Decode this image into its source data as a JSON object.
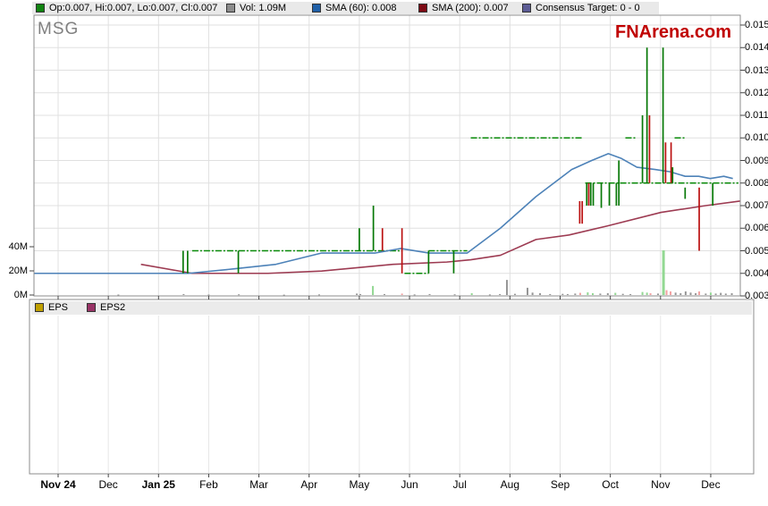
{
  "title": "MSG",
  "watermark": "FNArena.com",
  "legend_top": {
    "ohlc": {
      "label": "Op:0.007, Hi:0.007, Lo:0.007, Cl:0.007",
      "color": "#108410"
    },
    "vol": {
      "label": "Vol: 1.09M",
      "color": "#8c8c8c"
    },
    "sma60": {
      "label": "SMA (60): 0.008",
      "color": "#2060a8"
    },
    "sma200": {
      "label": "SMA (200): 0.007",
      "color": "#7d0a14"
    },
    "consensus": {
      "label": "Consensus Target: 0 - 0",
      "color": "#5c5c95"
    }
  },
  "eps_legend": {
    "eps": {
      "label": "EPS",
      "color": "#c0a000"
    },
    "eps2": {
      "label": "EPS2",
      "color": "#993366"
    }
  },
  "chart_data": {
    "type": "candlestick+line",
    "title": "MSG daily price with SMA(60), SMA(200), volume and consensus target",
    "x_ticks": [
      {
        "label": "Nov 24",
        "bold": true
      },
      {
        "label": "Dec",
        "bold": false
      },
      {
        "label": "Jan 25",
        "bold": true
      },
      {
        "label": "Feb",
        "bold": false
      },
      {
        "label": "Mar",
        "bold": false
      },
      {
        "label": "Apr",
        "bold": false
      },
      {
        "label": "May",
        "bold": false
      },
      {
        "label": "Jun",
        "bold": false
      },
      {
        "label": "Jul",
        "bold": false
      },
      {
        "label": "Aug",
        "bold": false
      },
      {
        "label": "Sep",
        "bold": false
      },
      {
        "label": "Oct",
        "bold": false
      },
      {
        "label": "Nov",
        "bold": false
      },
      {
        "label": "Dec",
        "bold": false
      }
    ],
    "price_axis": {
      "min": 0.003,
      "max": 0.015,
      "step": 0.001,
      "labels": [
        "0.015",
        "0.014",
        "0.013",
        "0.012",
        "0.011",
        "0.010",
        "0.009",
        "0.008",
        "0.007",
        "0.006",
        "0.005",
        "0.004",
        "0.003"
      ]
    },
    "volume_axis": {
      "max_m": 40,
      "labels": [
        {
          "label": "40M",
          "value": 40
        },
        {
          "label": "20M",
          "value": 20
        },
        {
          "label": "0M",
          "value": 0
        }
      ]
    },
    "flat_price_line": {
      "price": 0.004,
      "from": -0.48,
      "to": 2.49,
      "color": "#067806"
    },
    "candles": [
      {
        "x": 2.49,
        "lo": 0.004,
        "hi": 0.005,
        "dir": "up"
      },
      {
        "x": 2.58,
        "lo": 0.004,
        "hi": 0.005,
        "dir": "up"
      },
      {
        "x": 3.59,
        "lo": 0.004,
        "hi": 0.005,
        "dir": "up"
      },
      {
        "x": 6.0,
        "lo": 0.005,
        "hi": 0.006,
        "dir": "up"
      },
      {
        "x": 6.28,
        "lo": 0.005,
        "hi": 0.007,
        "dir": "up"
      },
      {
        "x": 6.46,
        "lo": 0.005,
        "hi": 0.006,
        "dir": "down"
      },
      {
        "x": 6.85,
        "lo": 0.004,
        "hi": 0.006,
        "dir": "down"
      },
      {
        "x": 7.38,
        "lo": 0.004,
        "hi": 0.005,
        "dir": "up"
      },
      {
        "x": 7.88,
        "lo": 0.004,
        "hi": 0.005,
        "dir": "up"
      },
      {
        "x": 10.39,
        "lo": 0.0062,
        "hi": 0.0072,
        "dir": "down"
      },
      {
        "x": 10.44,
        "lo": 0.0062,
        "hi": 0.0072,
        "dir": "down"
      },
      {
        "x": 10.53,
        "lo": 0.007,
        "hi": 0.008,
        "dir": "up"
      },
      {
        "x": 10.57,
        "lo": 0.007,
        "hi": 0.008,
        "dir": "down"
      },
      {
        "x": 10.61,
        "lo": 0.007,
        "hi": 0.008,
        "dir": "up"
      },
      {
        "x": 10.66,
        "lo": 0.007,
        "hi": 0.008,
        "dir": "up"
      },
      {
        "x": 10.82,
        "lo": 0.0069,
        "hi": 0.008,
        "dir": "up"
      },
      {
        "x": 10.98,
        "lo": 0.007,
        "hi": 0.008,
        "dir": "up"
      },
      {
        "x": 11.12,
        "lo": 0.007,
        "hi": 0.008,
        "dir": "up"
      },
      {
        "x": 11.17,
        "lo": 0.007,
        "hi": 0.009,
        "dir": "up"
      },
      {
        "x": 11.64,
        "lo": 0.008,
        "hi": 0.011,
        "dir": "up"
      },
      {
        "x": 11.73,
        "lo": 0.008,
        "hi": 0.014,
        "dir": "up"
      },
      {
        "x": 11.78,
        "lo": 0.008,
        "hi": 0.011,
        "dir": "down"
      },
      {
        "x": 12.05,
        "lo": 0.008,
        "hi": 0.014,
        "dir": "up"
      },
      {
        "x": 12.1,
        "lo": 0.008,
        "hi": 0.0098,
        "dir": "down"
      },
      {
        "x": 12.21,
        "lo": 0.008,
        "hi": 0.0098,
        "dir": "down"
      },
      {
        "x": 12.24,
        "lo": 0.008,
        "hi": 0.0087,
        "dir": "up"
      },
      {
        "x": 12.49,
        "lo": 0.0073,
        "hi": 0.0078,
        "dir": "up"
      },
      {
        "x": 12.77,
        "lo": 0.005,
        "hi": 0.0078,
        "dir": "down"
      },
      {
        "x": 13.04,
        "lo": 0.007,
        "hi": 0.008,
        "dir": "up"
      }
    ],
    "sma60": {
      "name": "SMA (60)",
      "color": "#4d82b8",
      "points": [
        [
          -0.48,
          0.004
        ],
        [
          2.6,
          0.004
        ],
        [
          3.51,
          0.0042
        ],
        [
          4.34,
          0.0044
        ],
        [
          5.25,
          0.0049
        ],
        [
          6.32,
          0.0049
        ],
        [
          6.82,
          0.0051
        ],
        [
          7.39,
          0.0049
        ],
        [
          8.15,
          0.0049
        ],
        [
          8.81,
          0.006
        ],
        [
          9.52,
          0.0074
        ],
        [
          10.23,
          0.0086
        ],
        [
          10.63,
          0.009
        ],
        [
          10.96,
          0.0093
        ],
        [
          11.21,
          0.0091
        ],
        [
          11.53,
          0.0087
        ],
        [
          11.89,
          0.0086
        ],
        [
          12.19,
          0.0085
        ],
        [
          12.49,
          0.0083
        ],
        [
          12.76,
          0.0083
        ],
        [
          12.99,
          0.0082
        ],
        [
          13.26,
          0.0083
        ],
        [
          13.44,
          0.0082
        ]
      ]
    },
    "sma200": {
      "name": "SMA (200)",
      "color": "#9d3b52",
      "points": [
        [
          1.65,
          0.0044
        ],
        [
          2.67,
          0.004
        ],
        [
          4.18,
          0.004
        ],
        [
          5.25,
          0.0041
        ],
        [
          6.67,
          0.0044
        ],
        [
          7.74,
          0.0045
        ],
        [
          8.22,
          0.0046
        ],
        [
          8.81,
          0.0048
        ],
        [
          9.52,
          0.0055
        ],
        [
          10.18,
          0.0057
        ],
        [
          10.94,
          0.0061
        ],
        [
          12.01,
          0.0067
        ],
        [
          12.9,
          0.007
        ],
        [
          13.58,
          0.0072
        ]
      ]
    },
    "consensus_segments": {
      "color": "#088a08",
      "segments": [
        {
          "from": -0.48,
          "to": 2.58,
          "price": 0.004
        },
        {
          "from": 2.67,
          "to": 6.85,
          "price": 0.005
        },
        {
          "from": 6.9,
          "to": 7.38,
          "price": 0.004
        },
        {
          "from": 7.38,
          "to": 8.15,
          "price": 0.005
        },
        {
          "from": 8.22,
          "to": 10.44,
          "price": 0.01
        },
        {
          "from": 11.3,
          "to": 11.51,
          "price": 0.01
        },
        {
          "from": 12.28,
          "to": 12.51,
          "price": 0.01
        },
        {
          "from": 10.5,
          "to": 13.55,
          "price": 0.008
        }
      ]
    },
    "volume_bars": [
      [
        1.2,
        0.4,
        "g"
      ],
      [
        2.5,
        0.8,
        "g"
      ],
      [
        3.0,
        0.4,
        "g"
      ],
      [
        3.6,
        0.6,
        "g"
      ],
      [
        4.5,
        0.3,
        "g"
      ],
      [
        5.2,
        0.5,
        "g"
      ],
      [
        5.95,
        1.2,
        "g"
      ],
      [
        6.02,
        0.8,
        "g"
      ],
      [
        6.27,
        7.5,
        "u"
      ],
      [
        6.5,
        0.8,
        "g"
      ],
      [
        6.85,
        1.2,
        "d"
      ],
      [
        7.1,
        0.5,
        "g"
      ],
      [
        7.4,
        0.8,
        "g"
      ],
      [
        7.9,
        0.6,
        "g"
      ],
      [
        8.24,
        1.5,
        "u"
      ],
      [
        8.6,
        0.5,
        "g"
      ],
      [
        8.8,
        0.8,
        "g"
      ],
      [
        8.94,
        12.5,
        "g"
      ],
      [
        9.1,
        1.0,
        "g"
      ],
      [
        9.35,
        6.0,
        "g"
      ],
      [
        9.45,
        2.0,
        "g"
      ],
      [
        9.6,
        1.5,
        "g"
      ],
      [
        9.8,
        0.8,
        "g"
      ],
      [
        10.05,
        1.0,
        "g"
      ],
      [
        10.15,
        0.8,
        "g"
      ],
      [
        10.3,
        1.2,
        "g"
      ],
      [
        10.4,
        1.8,
        "d"
      ],
      [
        10.55,
        2.2,
        "u"
      ],
      [
        10.65,
        1.5,
        "u"
      ],
      [
        10.8,
        1.2,
        "g"
      ],
      [
        10.95,
        1.5,
        "g"
      ],
      [
        11.1,
        1.8,
        "u"
      ],
      [
        11.25,
        1.0,
        "g"
      ],
      [
        11.4,
        0.8,
        "g"
      ],
      [
        11.64,
        2.5,
        "u"
      ],
      [
        11.73,
        2.0,
        "u"
      ],
      [
        11.8,
        1.5,
        "d"
      ],
      [
        11.95,
        1.2,
        "g"
      ],
      [
        12.05,
        37,
        "u"
      ],
      [
        12.12,
        4.0,
        "d"
      ],
      [
        12.2,
        3.0,
        "d"
      ],
      [
        12.3,
        2.0,
        "g"
      ],
      [
        12.4,
        1.5,
        "g"
      ],
      [
        12.5,
        3.0,
        "g"
      ],
      [
        12.6,
        2.0,
        "g"
      ],
      [
        12.7,
        1.5,
        "g"
      ],
      [
        12.77,
        3.0,
        "d"
      ],
      [
        12.9,
        1.2,
        "g"
      ],
      [
        13.0,
        2.0,
        "u"
      ],
      [
        13.1,
        1.2,
        "g"
      ],
      [
        13.2,
        1.8,
        "g"
      ],
      [
        13.3,
        1.2,
        "g"
      ],
      [
        13.42,
        1.5,
        "g"
      ]
    ],
    "grid": true,
    "legend_position": "top"
  }
}
